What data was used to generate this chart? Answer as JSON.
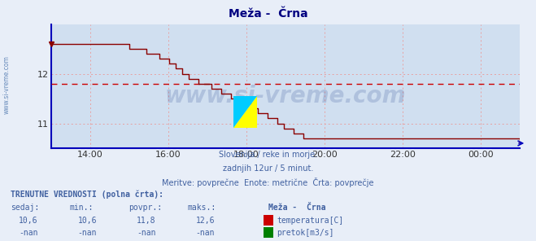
{
  "title": "Meža -  Črna",
  "title_color": "#000080",
  "outer_bg_color": "#e8eef8",
  "plot_bg_color": "#d0dff0",
  "line_color": "#8b0000",
  "avg_line_color": "#cc0000",
  "avg_line_value": 11.8,
  "ylim": [
    10.5,
    13.0
  ],
  "yticks": [
    11,
    12
  ],
  "xlim": [
    0,
    144
  ],
  "xtick_positions": [
    12,
    36,
    60,
    84,
    108,
    132
  ],
  "xtick_labels": [
    "14:00",
    "16:00",
    "18:00",
    "20:00",
    "22:00",
    "00:00"
  ],
  "grid_color": "#e8a0a0",
  "axis_color": "#0000bb",
  "watermark": "www.si-vreme.com",
  "watermark_color": "#1a3a8a",
  "watermark_alpha": 0.18,
  "sidewatermark_color": "#3060a0",
  "sub1": "Slovenija / reke in morje.",
  "sub2": "zadnjih 12ur / 5 minut.",
  "sub3": "Meritve: povprečne  Enote: metrične  Črta: povprečje",
  "footer_color": "#4060a0",
  "label_sedaj": "sedaj:",
  "label_min": "min.:",
  "label_povpr": "povpr.:",
  "label_maks": "maks.:",
  "val_sedaj": "10,6",
  "val_min": "10,6",
  "val_povpr": "11,8",
  "val_maks": "12,6",
  "val_sedaj2": "-nan",
  "val_min2": "-nan",
  "val_povpr2": "-nan",
  "val_maks2": "-nan",
  "station": "Meža -  Črna",
  "temp_label": "temperatura[C]",
  "flow_label": "pretok[m3/s]",
  "temp_color": "#cc0000",
  "flow_color": "#008000",
  "trenutne_label": "TRENUTNE VREDNOSTI (polna črta):",
  "temp_data": [
    12.6,
    12.6,
    12.6,
    12.6,
    12.6,
    12.6,
    12.6,
    12.6,
    12.6,
    12.6,
    12.6,
    12.6,
    12.6,
    12.6,
    12.6,
    12.6,
    12.6,
    12.6,
    12.6,
    12.6,
    12.6,
    12.6,
    12.6,
    12.6,
    12.5,
    12.5,
    12.5,
    12.5,
    12.5,
    12.4,
    12.4,
    12.4,
    12.4,
    12.3,
    12.3,
    12.3,
    12.2,
    12.2,
    12.1,
    12.1,
    12.0,
    12.0,
    11.9,
    11.9,
    11.9,
    11.8,
    11.8,
    11.8,
    11.8,
    11.7,
    11.7,
    11.7,
    11.6,
    11.6,
    11.6,
    11.5,
    11.5,
    11.5,
    11.4,
    11.4,
    11.4,
    11.3,
    11.3,
    11.2,
    11.2,
    11.2,
    11.1,
    11.1,
    11.1,
    11.0,
    11.0,
    10.9,
    10.9,
    10.9,
    10.8,
    10.8,
    10.8,
    10.7,
    10.7,
    10.7,
    10.7,
    10.7,
    10.7,
    10.7,
    10.7,
    10.7,
    10.7,
    10.7,
    10.7,
    10.7,
    10.7,
    10.7,
    10.7,
    10.7,
    10.7,
    10.7,
    10.7,
    10.7,
    10.7,
    10.7,
    10.7,
    10.7,
    10.7,
    10.7,
    10.7,
    10.7,
    10.7,
    10.7,
    10.7,
    10.7,
    10.7,
    10.7,
    10.7,
    10.7,
    10.7,
    10.7,
    10.7,
    10.7,
    10.7,
    10.7,
    10.7,
    10.7,
    10.7,
    10.7,
    10.7,
    10.7,
    10.7,
    10.7,
    10.7,
    10.7,
    10.7,
    10.7,
    10.7,
    10.7,
    10.7,
    10.7,
    10.7,
    10.7,
    10.7,
    10.7,
    10.7,
    10.7,
    10.7,
    10.6
  ]
}
